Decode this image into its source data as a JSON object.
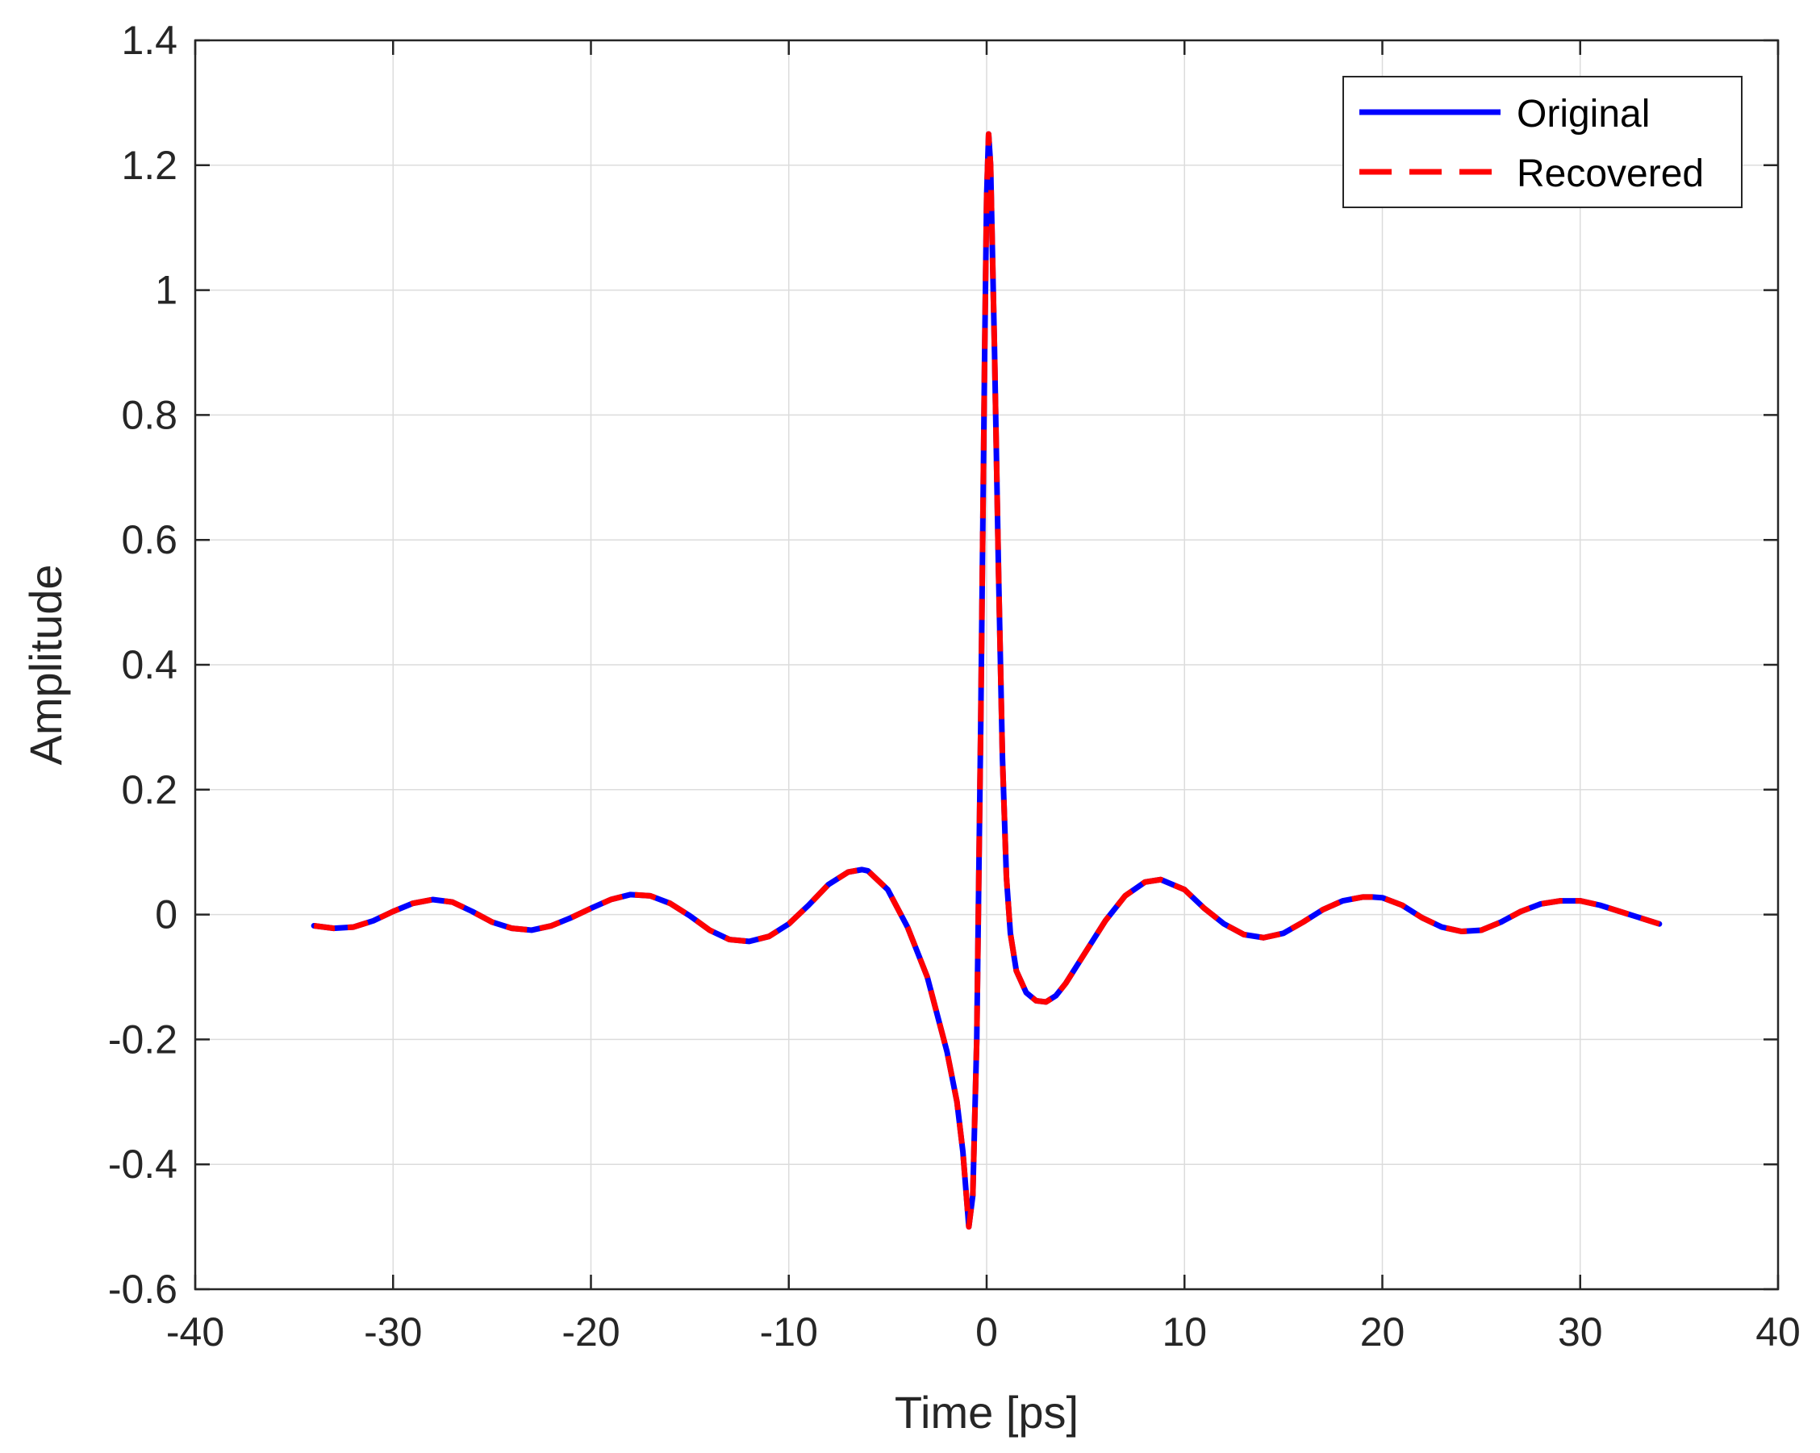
{
  "chart_data": {
    "type": "line",
    "title": "",
    "xlabel": "Time [ps]",
    "ylabel": "Amplitude",
    "xlim": [
      -40,
      40
    ],
    "ylim": [
      -0.6,
      1.4
    ],
    "xticks": [
      -40,
      -30,
      -20,
      -10,
      0,
      10,
      20,
      30,
      40
    ],
    "yticks": [
      -0.6,
      -0.4,
      -0.2,
      0,
      0.2,
      0.4,
      0.6,
      0.8,
      1,
      1.2,
      1.4
    ],
    "grid": true,
    "legend_position": "top-right",
    "series": [
      {
        "name": "Original",
        "color": "#0000ff",
        "style": "solid",
        "x": [
          -34,
          -33,
          -32,
          -31,
          -30,
          -29,
          -28,
          -27,
          -26,
          -25,
          -24,
          -23,
          -22,
          -21,
          -20,
          -19,
          -18,
          -17,
          -16,
          -15,
          -14,
          -13,
          -12,
          -11,
          -10,
          -9,
          -8,
          -7,
          -6.3,
          -6,
          -5,
          -4,
          -3,
          -2,
          -1.5,
          -1.2,
          -1,
          -0.9,
          -0.7,
          -0.5,
          -0.3,
          -0.1,
          0,
          0.1,
          0.2,
          0.4,
          0.6,
          0.8,
          1,
          1.2,
          1.5,
          2,
          2.5,
          3,
          3.5,
          4,
          5,
          6,
          7,
          8,
          8.8,
          10,
          11,
          12,
          13,
          14,
          15,
          16,
          17,
          18,
          19,
          19.5,
          20,
          21,
          22,
          23,
          24,
          25,
          26,
          27,
          28,
          29,
          30,
          31,
          32,
          33,
          34
        ],
        "y": [
          -0.018,
          -0.022,
          -0.02,
          -0.01,
          0.005,
          0.018,
          0.024,
          0.02,
          0.005,
          -0.012,
          -0.022,
          -0.025,
          -0.018,
          -0.005,
          0.01,
          0.024,
          0.032,
          0.03,
          0.018,
          -0.002,
          -0.025,
          -0.04,
          -0.043,
          -0.035,
          -0.015,
          0.015,
          0.048,
          0.068,
          0.072,
          0.07,
          0.04,
          -0.02,
          -0.1,
          -0.22,
          -0.3,
          -0.38,
          -0.46,
          -0.5,
          -0.45,
          -0.2,
          0.3,
          0.9,
          1.15,
          1.25,
          1.2,
          0.9,
          0.55,
          0.25,
          0.06,
          -0.03,
          -0.09,
          -0.125,
          -0.138,
          -0.14,
          -0.13,
          -0.11,
          -0.06,
          -0.01,
          0.03,
          0.052,
          0.056,
          0.04,
          0.01,
          -0.015,
          -0.032,
          -0.037,
          -0.03,
          -0.012,
          0.008,
          0.022,
          0.028,
          0.028,
          0.027,
          0.015,
          -0.005,
          -0.02,
          -0.027,
          -0.025,
          -0.012,
          0.005,
          0.017,
          0.022,
          0.022,
          0.015,
          0.005,
          -0.005,
          -0.015
        ]
      },
      {
        "name": "Recovered",
        "color": "#ff0000",
        "style": "dashed",
        "x": [
          -34,
          -33,
          -32,
          -31,
          -30,
          -29,
          -28,
          -27,
          -26,
          -25,
          -24,
          -23,
          -22,
          -21,
          -20,
          -19,
          -18,
          -17,
          -16,
          -15,
          -14,
          -13,
          -12,
          -11,
          -10,
          -9,
          -8,
          -7,
          -6.3,
          -6,
          -5,
          -4,
          -3,
          -2,
          -1.5,
          -1.2,
          -1,
          -0.9,
          -0.7,
          -0.5,
          -0.3,
          -0.1,
          0,
          0.1,
          0.2,
          0.4,
          0.6,
          0.8,
          1,
          1.2,
          1.5,
          2,
          2.5,
          3,
          3.5,
          4,
          5,
          6,
          7,
          8,
          8.8,
          10,
          11,
          12,
          13,
          14,
          15,
          16,
          17,
          18,
          19,
          19.5,
          20,
          21,
          22,
          23,
          24,
          25,
          26,
          27,
          28,
          29,
          30,
          31,
          32,
          33,
          34
        ],
        "y": [
          -0.018,
          -0.022,
          -0.02,
          -0.01,
          0.005,
          0.018,
          0.024,
          0.02,
          0.005,
          -0.012,
          -0.022,
          -0.025,
          -0.018,
          -0.005,
          0.01,
          0.024,
          0.032,
          0.03,
          0.018,
          -0.002,
          -0.025,
          -0.04,
          -0.043,
          -0.035,
          -0.015,
          0.015,
          0.048,
          0.068,
          0.072,
          0.07,
          0.04,
          -0.02,
          -0.1,
          -0.22,
          -0.3,
          -0.38,
          -0.46,
          -0.5,
          -0.45,
          -0.2,
          0.3,
          0.9,
          1.15,
          1.25,
          1.2,
          0.9,
          0.55,
          0.25,
          0.06,
          -0.03,
          -0.09,
          -0.125,
          -0.138,
          -0.14,
          -0.13,
          -0.11,
          -0.06,
          -0.01,
          0.03,
          0.052,
          0.056,
          0.04,
          0.01,
          -0.015,
          -0.032,
          -0.037,
          -0.03,
          -0.012,
          0.008,
          0.022,
          0.028,
          0.028,
          0.027,
          0.015,
          -0.005,
          -0.02,
          -0.027,
          -0.025,
          -0.012,
          0.005,
          0.017,
          0.022,
          0.022,
          0.015,
          0.005,
          -0.005,
          -0.015
        ]
      }
    ]
  }
}
